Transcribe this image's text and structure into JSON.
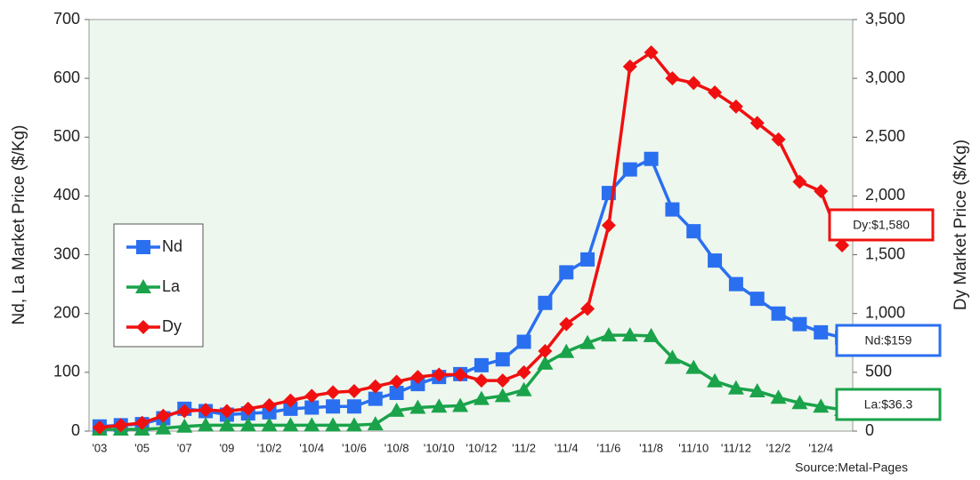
{
  "chart_data": {
    "type": "line",
    "y_label": "Nd, La Market Price ($/Kg)",
    "y2_label": "Dy Market Price ($/Kg)",
    "source": "Source:Metal-Pages",
    "categories": [
      "'03",
      null,
      "'05",
      null,
      "'07",
      null,
      "'09",
      null,
      "'10/2",
      null,
      "'10/4",
      null,
      "'10/6",
      null,
      "'10/8",
      null,
      "'10/10",
      null,
      "'10/12",
      null,
      "'11/2",
      null,
      "'11/4",
      null,
      "'11/6",
      null,
      "'11/8",
      null,
      "'11/10",
      null,
      "'11/12",
      null,
      "'12/2",
      null,
      "'12/4",
      null
    ],
    "ylim": [
      0,
      700
    ],
    "yticks": [
      0,
      100,
      200,
      300,
      400,
      500,
      600,
      700
    ],
    "y2lim": [
      0,
      3500
    ],
    "y2ticks": [
      0,
      500,
      {
        "value": 1000,
        "label": "1,000"
      },
      {
        "value": 1500,
        "label": "1,500"
      },
      {
        "value": 2000,
        "label": "2,000"
      },
      {
        "value": 2500,
        "label": "2,500"
      },
      {
        "value": 3000,
        "label": "3,000"
      },
      {
        "value": 3500,
        "label": "3,500"
      }
    ],
    "plot_background": "#eef7ee",
    "legend": "left",
    "series": [
      {
        "name": "Nd",
        "color": "#2a6ff0",
        "marker": "square",
        "end_label": "Nd:$159",
        "values": [
          8,
          10,
          12,
          22,
          38,
          34,
          28,
          30,
          32,
          38,
          40,
          42,
          42,
          55,
          65,
          80,
          92,
          97,
          112,
          122,
          152,
          218,
          270,
          292,
          405,
          445,
          463,
          377,
          340,
          290,
          250,
          225,
          200,
          182,
          168,
          159
        ]
      },
      {
        "name": "La",
        "color": "#1aa34a",
        "marker": "triangle",
        "end_label": "La:$36.3",
        "values": [
          3,
          3,
          3,
          5,
          8,
          10,
          10,
          10,
          10,
          10,
          10,
          10,
          10,
          12,
          35,
          40,
          42,
          43,
          55,
          60,
          70,
          115,
          135,
          150,
          163,
          163,
          162,
          125,
          108,
          85,
          73,
          68,
          57,
          48,
          42,
          36.3
        ]
      },
      {
        "name": "Dy",
        "color": "#f01010",
        "marker": "diamond",
        "axis": "y2",
        "end_label": "Dy:$1,580",
        "values": [
          30,
          50,
          70,
          130,
          170,
          180,
          170,
          190,
          220,
          260,
          300,
          330,
          340,
          380,
          420,
          460,
          480,
          480,
          430,
          430,
          500,
          680,
          910,
          1040,
          1750,
          3100,
          3220,
          3000,
          2960,
          2880,
          2760,
          2620,
          2480,
          2120,
          2040,
          1580
        ]
      }
    ]
  }
}
